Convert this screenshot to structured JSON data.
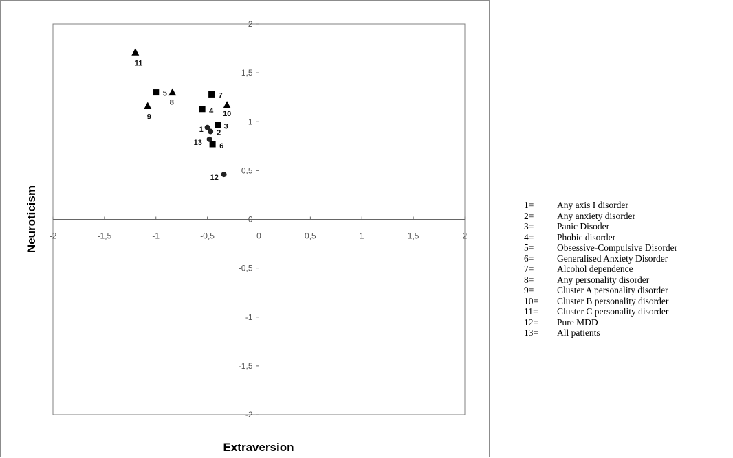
{
  "chart_data": {
    "type": "scatter",
    "xlabel": "Extraversion",
    "ylabel": "Neuroticism",
    "xlim": [
      -2,
      2
    ],
    "ylim": [
      -2,
      2
    ],
    "x_ticks": [
      "-2",
      "-1,5",
      "-1",
      "-0,5",
      "0",
      "0,5",
      "1",
      "1,5",
      "2"
    ],
    "y_ticks": [
      "2",
      "1,5",
      "1",
      "0,5",
      "0",
      "-0,5",
      "-1",
      "-1,5",
      "-2"
    ],
    "x_tick_values": [
      -2,
      -1.5,
      -1,
      -0.5,
      0,
      0.5,
      1,
      1.5,
      2
    ],
    "y_tick_values": [
      2,
      1.5,
      1,
      0.5,
      0,
      -0.5,
      -1,
      -1.5,
      -2
    ],
    "grid": false,
    "legend_position": "right",
    "points": [
      {
        "label": "1",
        "x": -0.5,
        "y": 0.94,
        "marker": "circle"
      },
      {
        "label": "2",
        "x": -0.47,
        "y": 0.9,
        "marker": "circle"
      },
      {
        "label": "3",
        "x": -0.4,
        "y": 0.97,
        "marker": "square"
      },
      {
        "label": "4",
        "x": -0.55,
        "y": 1.13,
        "marker": "square"
      },
      {
        "label": "5",
        "x": -1.0,
        "y": 1.3,
        "marker": "square"
      },
      {
        "label": "6",
        "x": -0.45,
        "y": 0.77,
        "marker": "square"
      },
      {
        "label": "7",
        "x": -0.46,
        "y": 1.28,
        "marker": "square"
      },
      {
        "label": "8",
        "x": -0.84,
        "y": 1.3,
        "marker": "triangle"
      },
      {
        "label": "9",
        "x": -1.08,
        "y": 1.16,
        "marker": "triangle"
      },
      {
        "label": "10",
        "x": -0.31,
        "y": 1.17,
        "marker": "triangle"
      },
      {
        "label": "11",
        "x": -1.2,
        "y": 1.71,
        "marker": "triangle"
      },
      {
        "label": "12",
        "x": -0.34,
        "y": 0.46,
        "marker": "circle"
      },
      {
        "label": "13",
        "x": -0.48,
        "y": 0.82,
        "marker": "circle"
      }
    ],
    "legend": [
      {
        "code": "1=",
        "text": "Any axis I disorder"
      },
      {
        "code": "2=",
        "text": "Any anxiety disorder"
      },
      {
        "code": "3=",
        "text": "Panic Disoder"
      },
      {
        "code": "4=",
        "text": "Phobic disorder"
      },
      {
        "code": "5=",
        "text": "Obsessive-Compulsive Disorder"
      },
      {
        "code": "6=",
        "text": "Generalised Anxiety Disorder"
      },
      {
        "code": "7=",
        "text": "Alcohol dependence"
      },
      {
        "code": "8=",
        "text": "Any personality disorder"
      },
      {
        "code": "9=",
        "text": "Cluster A personality disorder"
      },
      {
        "code": "10=",
        "text": "Cluster B personality disorder"
      },
      {
        "code": "11=",
        "text": "Cluster C personality disorder"
      },
      {
        "code": "12=",
        "text": "Pure MDD"
      },
      {
        "code": "13=",
        "text": "All patients"
      }
    ]
  }
}
